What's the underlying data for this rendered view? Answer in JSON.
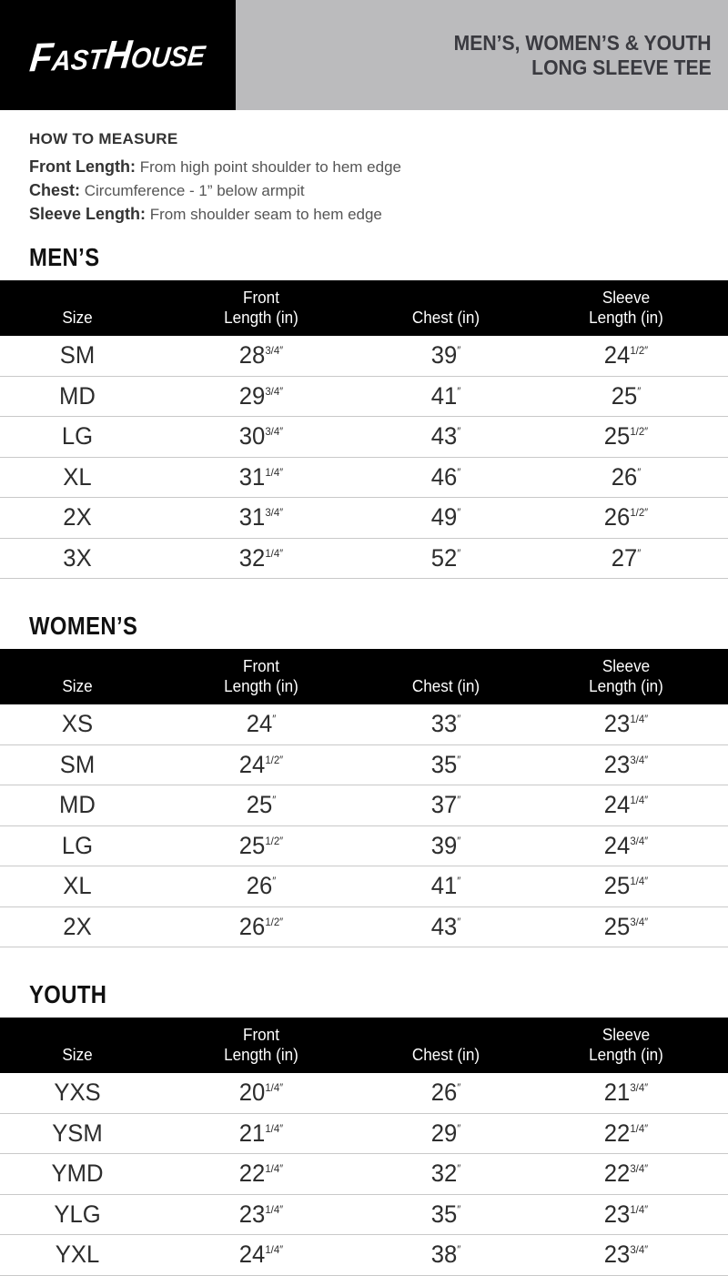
{
  "header": {
    "logo_text": "FastHouse",
    "title_line1": "MEN’S, WOMEN’S & YOUTH",
    "title_line2": "LONG SLEEVE TEE"
  },
  "how_to_measure": {
    "heading": "HOW TO MEASURE",
    "items": [
      {
        "label": "Front Length:",
        "text": "From high point shoulder to hem edge"
      },
      {
        "label": "Chest:",
        "text": "Circumference - 1” below armpit"
      },
      {
        "label": "Sleeve Length:",
        "text": "From shoulder seam to hem edge"
      }
    ]
  },
  "inch_mark": "″",
  "columns": [
    {
      "top": "",
      "bottom": "Size"
    },
    {
      "top": "Front",
      "bottom": "Length (in)"
    },
    {
      "top": "",
      "bottom": "Chest (in)"
    },
    {
      "top": "Sleeve",
      "bottom": "Length (in)"
    }
  ],
  "tables": [
    {
      "heading": "MEN’S",
      "rows": [
        {
          "size": "SM",
          "front": {
            "n": "28",
            "f": "3/4"
          },
          "chest": {
            "n": "39",
            "f": ""
          },
          "sleeve": {
            "n": "24",
            "f": "1/2"
          }
        },
        {
          "size": "MD",
          "front": {
            "n": "29",
            "f": "3/4"
          },
          "chest": {
            "n": "41",
            "f": ""
          },
          "sleeve": {
            "n": "25",
            "f": ""
          }
        },
        {
          "size": "LG",
          "front": {
            "n": "30",
            "f": "3/4"
          },
          "chest": {
            "n": "43",
            "f": ""
          },
          "sleeve": {
            "n": "25",
            "f": "1/2"
          }
        },
        {
          "size": "XL",
          "front": {
            "n": "31",
            "f": "1/4"
          },
          "chest": {
            "n": "46",
            "f": ""
          },
          "sleeve": {
            "n": "26",
            "f": ""
          }
        },
        {
          "size": "2X",
          "front": {
            "n": "31",
            "f": "3/4"
          },
          "chest": {
            "n": "49",
            "f": ""
          },
          "sleeve": {
            "n": "26",
            "f": "1/2"
          }
        },
        {
          "size": "3X",
          "front": {
            "n": "32",
            "f": "1/4"
          },
          "chest": {
            "n": "52",
            "f": ""
          },
          "sleeve": {
            "n": "27",
            "f": ""
          }
        }
      ]
    },
    {
      "heading": "WOMEN’S",
      "rows": [
        {
          "size": "XS",
          "front": {
            "n": "24",
            "f": ""
          },
          "chest": {
            "n": "33",
            "f": ""
          },
          "sleeve": {
            "n": "23",
            "f": "1/4"
          }
        },
        {
          "size": "SM",
          "front": {
            "n": "24",
            "f": "1/2"
          },
          "chest": {
            "n": "35",
            "f": ""
          },
          "sleeve": {
            "n": "23",
            "f": "3/4"
          }
        },
        {
          "size": "MD",
          "front": {
            "n": "25",
            "f": ""
          },
          "chest": {
            "n": "37",
            "f": ""
          },
          "sleeve": {
            "n": "24",
            "f": "1/4"
          }
        },
        {
          "size": "LG",
          "front": {
            "n": "25",
            "f": "1/2"
          },
          "chest": {
            "n": "39",
            "f": ""
          },
          "sleeve": {
            "n": "24",
            "f": "3/4"
          }
        },
        {
          "size": "XL",
          "front": {
            "n": "26",
            "f": ""
          },
          "chest": {
            "n": "41",
            "f": ""
          },
          "sleeve": {
            "n": "25",
            "f": "1/4"
          }
        },
        {
          "size": "2X",
          "front": {
            "n": "26",
            "f": "1/2"
          },
          "chest": {
            "n": "43",
            "f": ""
          },
          "sleeve": {
            "n": "25",
            "f": "3/4"
          }
        }
      ]
    },
    {
      "heading": "YOUTH",
      "rows": [
        {
          "size": "YXS",
          "front": {
            "n": "20",
            "f": "1/4"
          },
          "chest": {
            "n": "26",
            "f": ""
          },
          "sleeve": {
            "n": "21",
            "f": "3/4"
          }
        },
        {
          "size": "YSM",
          "front": {
            "n": "21",
            "f": "1/4"
          },
          "chest": {
            "n": "29",
            "f": ""
          },
          "sleeve": {
            "n": "22",
            "f": "1/4"
          }
        },
        {
          "size": "YMD",
          "front": {
            "n": "22",
            "f": "1/4"
          },
          "chest": {
            "n": "32",
            "f": ""
          },
          "sleeve": {
            "n": "22",
            "f": "3/4"
          }
        },
        {
          "size": "YLG",
          "front": {
            "n": "23",
            "f": "1/4"
          },
          "chest": {
            "n": "35",
            "f": ""
          },
          "sleeve": {
            "n": "23",
            "f": "1/4"
          }
        },
        {
          "size": "YXL",
          "front": {
            "n": "24",
            "f": "1/4"
          },
          "chest": {
            "n": "38",
            "f": ""
          },
          "sleeve": {
            "n": "23",
            "f": "3/4"
          }
        }
      ]
    }
  ],
  "colors": {
    "black_bar": "#000000",
    "banner_gray": "#bbbbbd",
    "banner_text": "#3a3a40",
    "row_divider": "#c9c9c9",
    "cell_text": "#2d2d2d",
    "muted_text": "#555555",
    "white": "#ffffff"
  }
}
